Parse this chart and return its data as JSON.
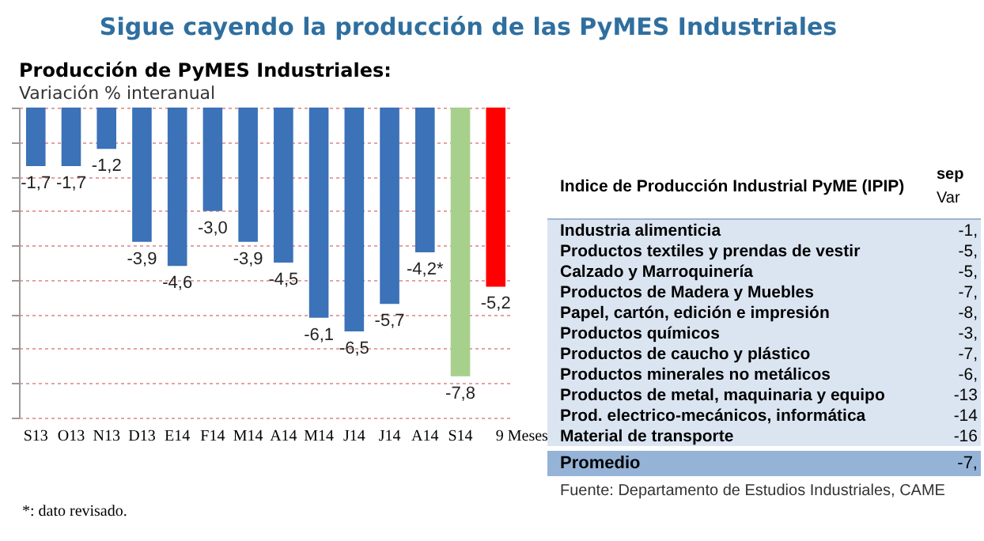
{
  "chart_data": [
    {
      "type": "bar",
      "title": "Sigue cayendo la producción de las PyMES Industriales",
      "subtitle": "Producción de PyMES Industriales:",
      "ylabel": "Variación % interanual",
      "categories": [
        "S13",
        "O13",
        "N13",
        "D13",
        "E14",
        "F14",
        "M14",
        "A14",
        "M14",
        "J14",
        "J14",
        "A14",
        "S14",
        "9 Meses"
      ],
      "values": [
        -1.7,
        -1.7,
        -1.2,
        -3.9,
        -4.6,
        -3.0,
        -3.9,
        -4.5,
        -6.1,
        -6.5,
        -5.7,
        -4.2,
        -7.8,
        -5.2
      ],
      "colors": [
        "#3b72b8",
        "#3b72b8",
        "#3b72b8",
        "#3b72b8",
        "#3b72b8",
        "#3b72b8",
        "#3b72b8",
        "#3b72b8",
        "#3b72b8",
        "#3b72b8",
        "#3b72b8",
        "#3b72b8",
        "#a8d08d",
        "#ff0000"
      ],
      "value_labels": [
        "-1,7",
        "-1,7",
        "-1,2",
        "-3,9",
        "-4,6",
        "-3,0",
        "-3,9",
        "-4,5",
        "-6,1",
        "-6,5",
        "-5,7",
        "-4,2*",
        "-7,8",
        "-5,2"
      ],
      "ylim": [
        -9,
        0
      ],
      "yticks": [
        {
          "value": 0,
          "label": null
        },
        {
          "value": -1,
          "label": null
        },
        {
          "value": -2,
          "label": null
        },
        {
          "value": -3,
          "label": null
        },
        {
          "value": -4,
          "label": null
        },
        {
          "value": -5,
          "label": null
        },
        {
          "value": -6,
          "label": null
        },
        {
          "value": -7,
          "label": null
        },
        {
          "value": -8,
          "label": null
        },
        {
          "value": -9,
          "label": null
        }
      ],
      "tick_labels": "x",
      "grid": "y",
      "annotations": [
        "*: dato revisado."
      ]
    },
    {
      "type": "other",
      "title": "Indice de Producción Industrial PyME (IPIP)",
      "subtitle": "sep",
      "xlabel": "Var",
      "categories": [
        "Industria alimenticia",
        "Productos textiles y prendas de vestir",
        "Calzado y Marroquinería",
        "Productos de Madera y Muebles",
        "Papel, cartón, edición e impresión",
        "Productos químicos",
        "Productos de caucho y plástico",
        "Productos minerales no metálicos",
        "Productos de metal, maquinaria y equipo",
        "Prod. electrico-mecánicos, informática",
        "Material de transporte",
        "Promedio"
      ],
      "value_labels": [
        "-1,",
        "-5,",
        "-5,",
        "-7,",
        "-8,",
        "-3,",
        "-7,",
        "-6,",
        "-13",
        "-14",
        "-16",
        "-7,"
      ],
      "annotations": [
        "Fuente: Departamento de Estudios Industriales, CAME"
      ]
    }
  ]
}
